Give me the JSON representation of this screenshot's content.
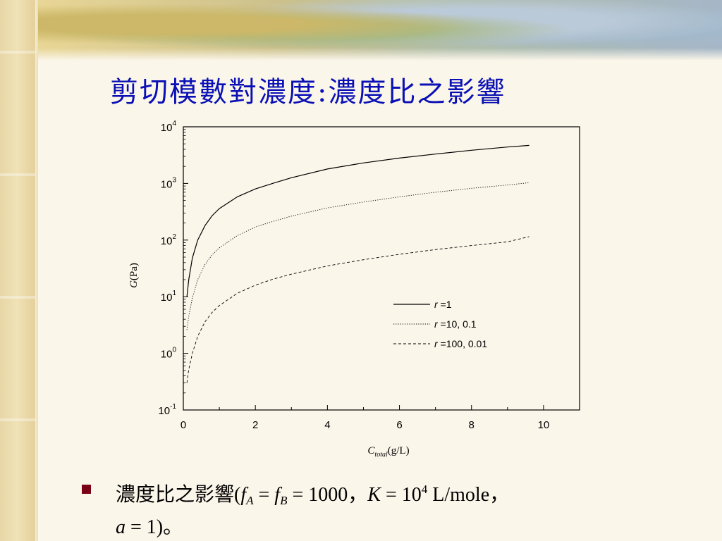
{
  "slide": {
    "title": "剪切模數對濃度:濃度比之影響"
  },
  "bullet": {
    "prefix": "濃度比之影響(",
    "fA": "f",
    "fA_sub": "A",
    "eq1": " = ",
    "fB": "f",
    "fB_sub": "B",
    "eq2": " = 1000，",
    "K": "K",
    "eq3": " = 10",
    "K_exp": "4",
    "units": " L/mole，",
    "a": "a",
    "tail": " = 1)。"
  },
  "colors": {
    "title": "#0a10b5",
    "bullet_marker": "#7a0016",
    "series_line": "#000000"
  },
  "chart_data": {
    "type": "line",
    "title": "",
    "xlabel_main": "C",
    "xlabel_sub": "total",
    "xlabel_unit": "(g/L)",
    "ylabel_main": "G",
    "ylabel_unit": "(Pa)",
    "xlim": [
      0,
      11
    ],
    "ylim_log10": [
      -1,
      4
    ],
    "y_scale": "log",
    "x_ticks": [
      0,
      2,
      4,
      6,
      8,
      10
    ],
    "y_tick_base": "10",
    "y_tick_exponents": [
      "4",
      "3",
      "2",
      "1",
      "0",
      "-1"
    ],
    "legend_placement": "center-right",
    "series": [
      {
        "name": "r =1",
        "name_italic": "r",
        "name_rest": " =1",
        "style": "solid",
        "x": [
          0.1,
          0.15,
          0.25,
          0.4,
          0.6,
          0.8,
          1.0,
          1.5,
          2.0,
          2.5,
          3.0,
          4.0,
          5.0,
          6.0,
          7.0,
          8.0,
          9.0,
          9.6
        ],
        "y": [
          10,
          20,
          48,
          100,
          180,
          270,
          360,
          580,
          800,
          1010,
          1260,
          1800,
          2300,
          2800,
          3300,
          3850,
          4400,
          4700
        ]
      },
      {
        "name": "r =10, 0.1",
        "name_italic": "r",
        "name_rest": " =10, 0.1",
        "style": "dotted",
        "x": [
          0.1,
          0.15,
          0.25,
          0.4,
          0.6,
          0.8,
          1.0,
          1.5,
          2.0,
          2.5,
          3.0,
          4.0,
          5.0,
          6.0,
          7.0,
          8.0,
          9.0,
          9.6
        ],
        "y": [
          2.6,
          4.5,
          9.5,
          20,
          37,
          55,
          73,
          120,
          170,
          215,
          265,
          370,
          470,
          580,
          700,
          820,
          940,
          1030
        ]
      },
      {
        "name": "r =100, 0.01",
        "name_italic": "r",
        "name_rest": " =100, 0.01",
        "style": "dashed",
        "x": [
          0.1,
          0.15,
          0.25,
          0.4,
          0.6,
          0.8,
          1.0,
          1.5,
          2.0,
          2.5,
          3.0,
          4.0,
          5.0,
          6.0,
          7.0,
          8.0,
          9.0,
          9.6
        ],
        "y": [
          0.3,
          0.52,
          1.0,
          2.0,
          3.6,
          5.3,
          7.0,
          11.5,
          16,
          20.5,
          25,
          35,
          45,
          56,
          68,
          80,
          93,
          115
        ]
      }
    ]
  }
}
